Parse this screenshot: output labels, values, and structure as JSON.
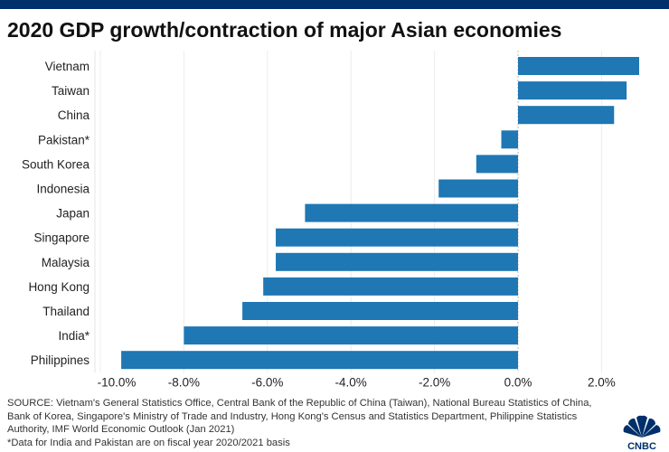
{
  "brand": {
    "topbar_color": "#00306b",
    "bar_color": "#1f77b4",
    "logo_text": "CNBC"
  },
  "title": "2020 GDP growth/contraction of major Asian economies",
  "chart_data": {
    "type": "bar",
    "orientation": "horizontal",
    "title": "2020 GDP growth/contraction of major Asian economies",
    "categories": [
      "Vietnam",
      "Taiwan",
      "China",
      "Pakistan*",
      "South Korea",
      "Indonesia",
      "Japan",
      "Singapore",
      "Malaysia",
      "Hong Kong",
      "Thailand",
      "India*",
      "Philippines"
    ],
    "values": [
      2.9,
      2.6,
      2.3,
      -0.4,
      -1.0,
      -1.9,
      -5.1,
      -5.8,
      -5.8,
      -6.1,
      -6.6,
      -8.0,
      -9.5
    ],
    "unit": "%",
    "xlim": [
      -10.4,
      3.5
    ],
    "xticks": [
      -10,
      -8,
      -6,
      -4,
      -2,
      0,
      2
    ],
    "xtick_labels": [
      "-10.0%",
      "-8.0%",
      "-6.0%",
      "-4.0%",
      "-2.0%",
      "0.0%",
      "2.0%"
    ],
    "grid": "vertical",
    "xlabel": "",
    "ylabel": ""
  },
  "footer": {
    "lines": [
      "SOURCE: Vietnam's General Statistics Office, Central Bank of the Republic of China (Taiwan), National Bureau Statistics of China,",
      "Bank of Korea, Singapore's Ministry of Trade and Industry, Hong Kong's Census and Statistics Department, Philippine Statistics",
      "Authority, IMF World Economic Outlook (Jan 2021)",
      "*Data for India and Pakistan are on fiscal year 2020/2021 basis"
    ]
  }
}
